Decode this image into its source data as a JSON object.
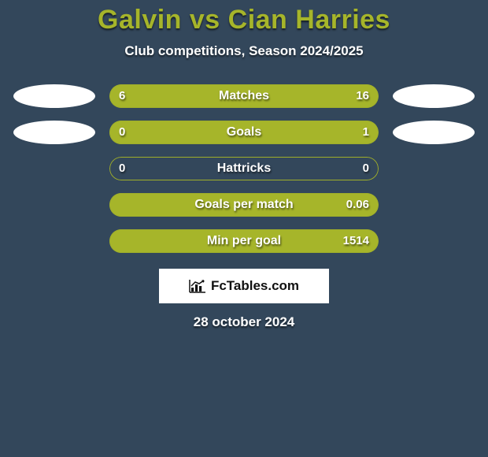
{
  "title": "Galvin vs Cian Harries",
  "subtitle": "Club competitions, Season 2024/2025",
  "colors": {
    "accent": "#a6b52a",
    "bar_bg": "#33475b",
    "ellipse": "#ffffff"
  },
  "rows": [
    {
      "label": "Matches",
      "left_val": "6",
      "right_val": "16",
      "left_pct": 27,
      "show_ellipses": true
    },
    {
      "label": "Goals",
      "left_val": "0",
      "right_val": "1",
      "left_pct": 0,
      "show_ellipses": true
    },
    {
      "label": "Hattricks",
      "left_val": "0",
      "right_val": "0",
      "left_pct": 0,
      "right_pct": 0,
      "show_ellipses": false
    },
    {
      "label": "Goals per match",
      "left_val": "",
      "right_val": "0.06",
      "left_pct": 0,
      "show_ellipses": false
    },
    {
      "label": "Min per goal",
      "left_val": "",
      "right_val": "1514",
      "left_pct": 0,
      "show_ellipses": false
    }
  ],
  "banner_text": "FcTables.com",
  "date_text": "28 october 2024"
}
